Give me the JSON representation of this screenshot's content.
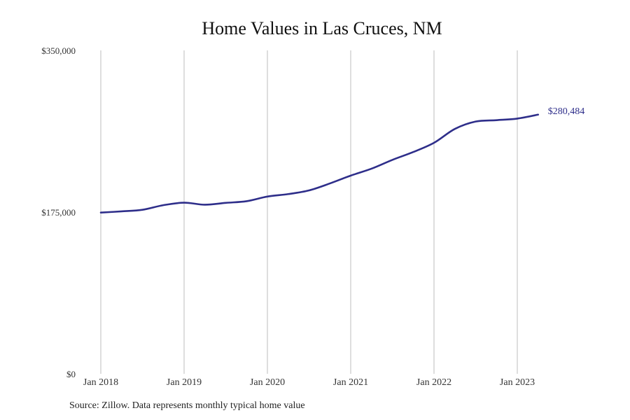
{
  "chart_data": {
    "type": "line",
    "title": "Home Values in Las Cruces, NM",
    "xlabel": "",
    "ylabel": "",
    "ylim": [
      0,
      350000
    ],
    "yticks": [
      {
        "value": 0,
        "label": "$0"
      },
      {
        "value": 175000,
        "label": "$175,000"
      },
      {
        "value": 350000,
        "label": "$350,000"
      }
    ],
    "xticks": [
      "Jan 2018",
      "Jan 2019",
      "Jan 2020",
      "Jan 2021",
      "Jan 2022",
      "Jan 2023"
    ],
    "grid": "vertical",
    "line_color": "#2e2e8a",
    "end_label": "$280,484",
    "series": [
      {
        "values": [
          {
            "date": "2018-01",
            "value": 174500
          },
          {
            "date": "2018-04",
            "value": 175800
          },
          {
            "date": "2018-07",
            "value": 177500
          },
          {
            "date": "2018-10",
            "value": 182500
          },
          {
            "date": "2019-01",
            "value": 185200
          },
          {
            "date": "2019-04",
            "value": 183000
          },
          {
            "date": "2019-07",
            "value": 185000
          },
          {
            "date": "2019-10",
            "value": 186800
          },
          {
            "date": "2020-01",
            "value": 191800
          },
          {
            "date": "2020-04",
            "value": 194500
          },
          {
            "date": "2020-07",
            "value": 198500
          },
          {
            "date": "2020-10",
            "value": 206000
          },
          {
            "date": "2021-01",
            "value": 214500
          },
          {
            "date": "2021-04",
            "value": 222000
          },
          {
            "date": "2021-07",
            "value": 231500
          },
          {
            "date": "2021-10",
            "value": 240000
          },
          {
            "date": "2022-01",
            "value": 250000
          },
          {
            "date": "2022-04",
            "value": 265000
          },
          {
            "date": "2022-07",
            "value": 273000
          },
          {
            "date": "2022-10",
            "value": 274500
          },
          {
            "date": "2023-01",
            "value": 276200
          },
          {
            "date": "2023-04",
            "value": 280484
          }
        ]
      }
    ]
  },
  "source_note": "Source: Zillow. Data represents monthly typical home value"
}
